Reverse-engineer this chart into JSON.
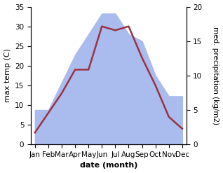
{
  "months": [
    "Jan",
    "Feb",
    "Mar",
    "Apr",
    "May",
    "Jun",
    "Jul",
    "Aug",
    "Sep",
    "Oct",
    "Nov",
    "Dec"
  ],
  "temperature": [
    3,
    8,
    13,
    19,
    19,
    30,
    29,
    30,
    22,
    15,
    7,
    4
  ],
  "precipitation": [
    5,
    5,
    9,
    13,
    16,
    19,
    19,
    16,
    15,
    10,
    7,
    7
  ],
  "temp_color": "#993344",
  "precip_fill_color": "#aabbee",
  "temp_ylim": [
    0,
    35
  ],
  "precip_ylim": [
    0,
    20
  ],
  "temp_yticks": [
    0,
    5,
    10,
    15,
    20,
    25,
    30,
    35
  ],
  "precip_yticks": [
    0,
    5,
    10,
    15,
    20
  ],
  "xlabel": "date (month)",
  "ylabel_left": "max temp (C)",
  "ylabel_right": "med. precipitation (kg/m2)",
  "label_fontsize": 8,
  "tick_fontsize": 7.5
}
